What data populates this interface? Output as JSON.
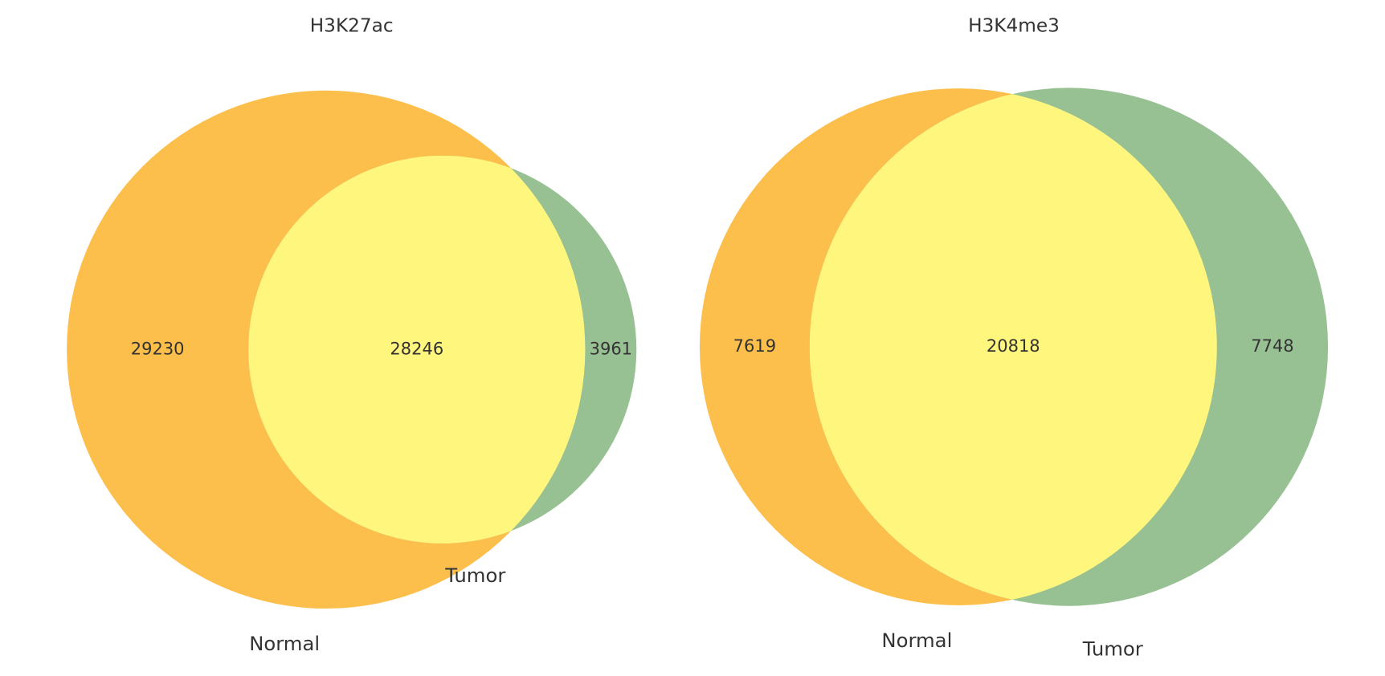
{
  "chart_data": [
    {
      "type": "venn",
      "title": "H3K27ac",
      "sets": [
        {
          "name": "Normal",
          "color": "#fdbf4b"
        },
        {
          "name": "Tumor",
          "color": "#98c193"
        }
      ],
      "overlap_color": "#fff67e",
      "values": [
        29230,
        28246,
        3961
      ]
    },
    {
      "type": "venn",
      "title": "H3K4me3",
      "sets": [
        {
          "name": "Normal",
          "color": "#fdbf4b"
        },
        {
          "name": "Tumor",
          "color": "#98c193"
        }
      ],
      "overlap_color": "#fff67e",
      "values": [
        7619,
        20818,
        7748
      ]
    }
  ]
}
